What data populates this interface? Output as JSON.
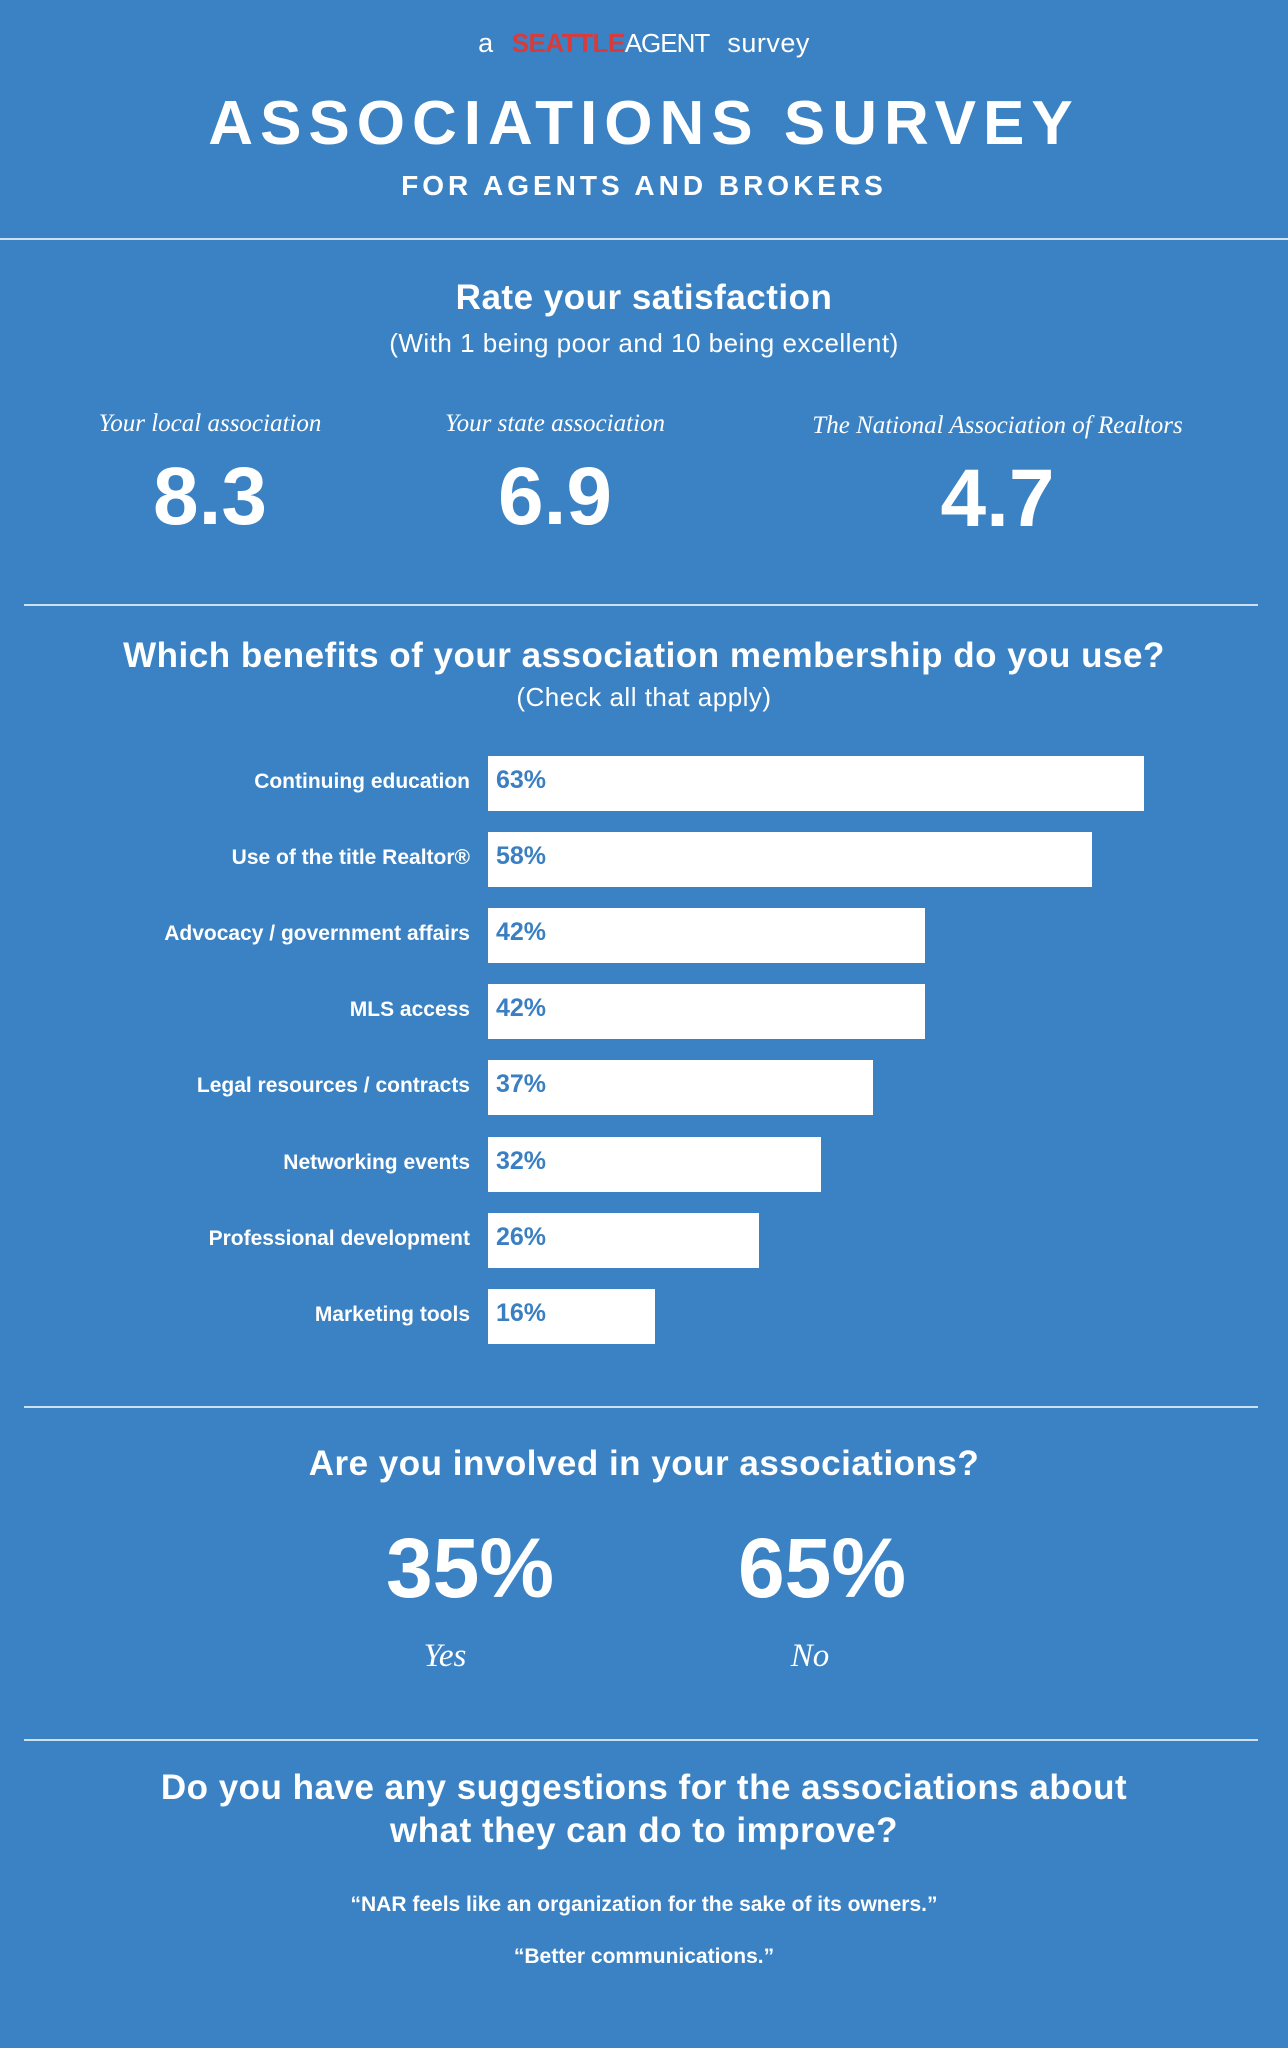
{
  "header": {
    "prefix": "a",
    "logo_part1": "SEATTLE",
    "logo_part2": "AGENT",
    "suffix": "survey",
    "title": "ASSOCIATIONS SURVEY",
    "subtitle": "FOR AGENTS AND BROKERS"
  },
  "satisfaction": {
    "title": "Rate your satisfaction",
    "subtitle": "(With 1 being poor and 10 being excellent)",
    "items": [
      {
        "label": "Your local association",
        "value": "8.3"
      },
      {
        "label": "Your state association",
        "value": "6.9"
      },
      {
        "label": "The National Association of Realtors",
        "value": "4.7"
      }
    ]
  },
  "benefits": {
    "title": "Which benefits of your association membership do you use?",
    "subtitle": "(Check all that apply)"
  },
  "chart_data": {
    "type": "bar",
    "orientation": "horizontal",
    "title": "Which benefits of your association membership do you use?",
    "subtitle": "(Check all that apply)",
    "categories": [
      "Continuing education",
      "Use of the title Realtor®",
      "Advocacy / government affairs",
      "MLS access",
      "Legal resources / contracts",
      "Networking events",
      "Professional development",
      "Marketing tools"
    ],
    "values": [
      63,
      58,
      42,
      42,
      37,
      32,
      26,
      16
    ],
    "value_labels": [
      "63%",
      "58%",
      "42%",
      "42%",
      "37%",
      "32%",
      "26%",
      "16%"
    ],
    "unit": "%",
    "grid": false,
    "legend": "none",
    "colors": {
      "bar": "#ffffff",
      "bar_text": "#3a7fc2",
      "background": "#3a82c4"
    }
  },
  "involvement": {
    "title": "Are you involved in your associations?",
    "yes_value": "35%",
    "yes_label": "Yes",
    "no_value": "65%",
    "no_label": "No"
  },
  "suggestions": {
    "title_line1": "Do you have any suggestions for the associations about",
    "title_line2": "what they can do to improve?",
    "quotes": [
      "“NAR feels like an organization for the sake of its owners.”",
      "“Better communications.”"
    ]
  },
  "colors": {
    "background": "#3a82c4",
    "text": "#ffffff",
    "logo_accent": "#d93a3a"
  }
}
